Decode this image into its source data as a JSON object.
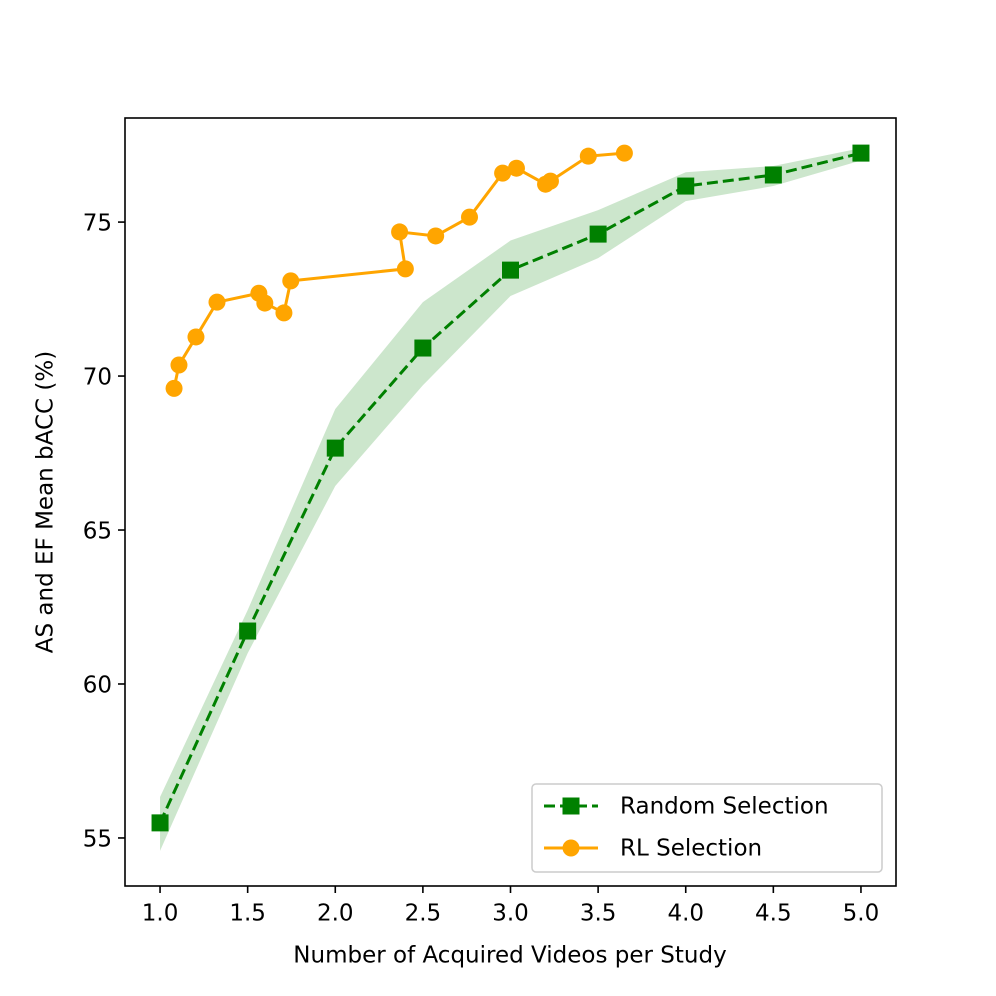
{
  "chart_data": {
    "type": "line",
    "xlabel": "Number of Acquired Videos per Study",
    "ylabel": "AS and EF Mean bACC (%)",
    "xlim": [
      0.8,
      5.2
    ],
    "ylim": [
      53.44,
      78.38
    ],
    "xticks": [
      {
        "value": 1,
        "label": "1.0"
      },
      1.5,
      {
        "value": 2,
        "label": "2.0"
      },
      2.5,
      {
        "value": 3,
        "label": "3.0"
      },
      3.5,
      {
        "value": 4,
        "label": "4.0"
      },
      4.5,
      {
        "value": 5,
        "label": "5.0"
      }
    ],
    "yticks": [
      55,
      60,
      65,
      70,
      75
    ],
    "legend": "lower right",
    "series": [
      {
        "name": "Random Selection",
        "color": "#008000",
        "marker": "square",
        "dashed": true,
        "x": [
          1.0,
          1.5,
          2.0,
          2.5,
          3.0,
          3.5,
          4.0,
          4.5,
          5.0
        ],
        "values": [
          55.49,
          61.72,
          67.66,
          70.91,
          73.44,
          74.61,
          76.17,
          76.53,
          77.24
        ],
        "lower": [
          54.58,
          61.0,
          66.43,
          69.7,
          72.6,
          73.83,
          75.68,
          76.17,
          77.0
        ],
        "upper": [
          56.33,
          62.4,
          68.93,
          72.4,
          74.4,
          75.39,
          76.62,
          76.82,
          77.4
        ]
      },
      {
        "name": "RL Selection",
        "color": "#ffa500",
        "marker": "circle",
        "dashed": false,
        "x": [
          1.08,
          1.108,
          1.205,
          1.325,
          1.564,
          1.598,
          1.707,
          1.746,
          2.4,
          2.367,
          2.573,
          2.766,
          2.955,
          3.034,
          3.2,
          3.228,
          3.444,
          3.65
        ],
        "values": [
          69.6,
          70.36,
          71.27,
          72.4,
          72.69,
          72.37,
          72.05,
          73.09,
          73.48,
          74.68,
          74.55,
          75.16,
          76.59,
          76.75,
          76.23,
          76.33,
          77.14,
          77.24
        ]
      }
    ]
  }
}
